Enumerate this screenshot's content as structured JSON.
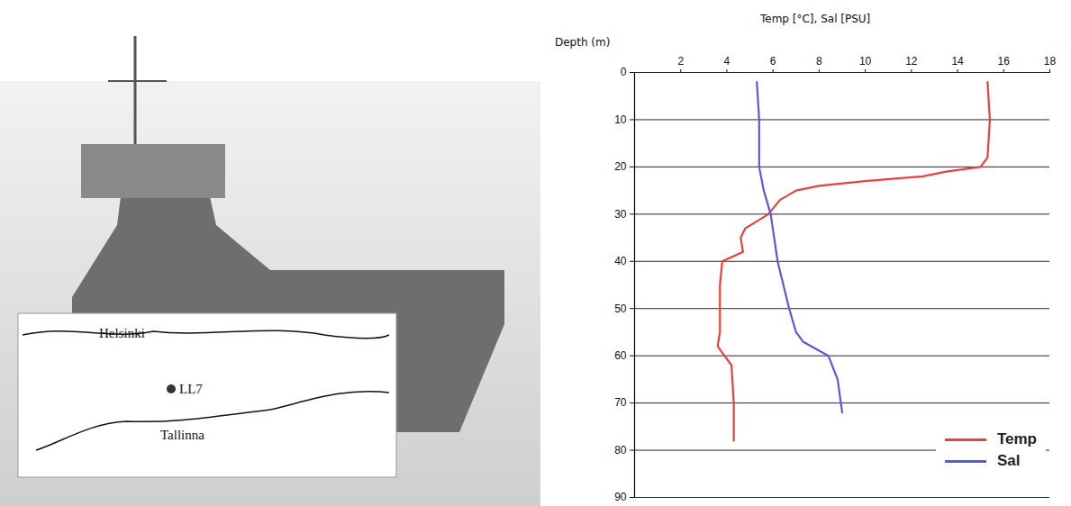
{
  "chart_data": {
    "type": "line",
    "x_label": "Temp [°C], Sal [PSU]",
    "y_label": "Depth (m)",
    "xlim": [
      0,
      18
    ],
    "xticks": [
      2,
      4,
      6,
      8,
      10,
      12,
      14,
      16,
      18
    ],
    "ylim": [
      0,
      90
    ],
    "yticks": [
      0,
      10,
      20,
      30,
      40,
      50,
      60,
      70,
      80,
      90
    ],
    "grid": true,
    "legend": "bottom-right",
    "series": [
      {
        "name": "Temp",
        "color": "#e8403a",
        "depth": [
          2,
          10,
          18,
          20,
          21,
          22,
          23,
          24,
          25,
          27,
          30,
          33,
          35,
          38,
          40,
          45,
          50,
          55,
          58,
          60,
          62,
          70,
          78
        ],
        "values": [
          15.3,
          15.4,
          15.3,
          15.0,
          13.5,
          12.5,
          10.0,
          8.0,
          7.0,
          6.3,
          5.8,
          4.8,
          4.6,
          4.7,
          3.8,
          3.7,
          3.7,
          3.7,
          3.6,
          3.9,
          4.2,
          4.3,
          4.3
        ]
      },
      {
        "name": "Sal",
        "color": "#5a5ad8",
        "depth": [
          2,
          10,
          20,
          25,
          30,
          40,
          50,
          55,
          57,
          60,
          65,
          72
        ],
        "values": [
          5.3,
          5.4,
          5.4,
          5.6,
          5.9,
          6.2,
          6.7,
          7.0,
          7.3,
          8.4,
          8.8,
          9.0
        ]
      }
    ]
  },
  "inset_map": {
    "labels": [
      "Helsinki",
      "LL7",
      "Tallinna"
    ]
  }
}
